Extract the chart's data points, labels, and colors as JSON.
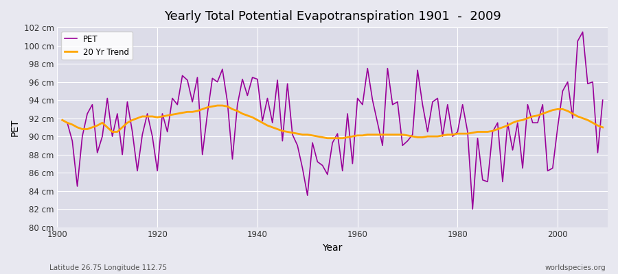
{
  "title": "Yearly Total Potential Evapotranspiration 1901  -  2009",
  "xlabel": "Year",
  "ylabel": "PET",
  "subtitle_left": "Latitude 26.75 Longitude 112.75",
  "subtitle_right": "worldspecies.org",
  "ylim": [
    80,
    102
  ],
  "ytick_step": 2,
  "pet_color": "#990099",
  "trend_color": "#FFA500",
  "bg_color": "#E8E8F0",
  "plot_bg_color": "#DCDCE8",
  "grid_color": "#FFFFFF",
  "years": [
    1901,
    1902,
    1903,
    1904,
    1905,
    1906,
    1907,
    1908,
    1909,
    1910,
    1911,
    1912,
    1913,
    1914,
    1915,
    1916,
    1917,
    1918,
    1919,
    1920,
    1921,
    1922,
    1923,
    1924,
    1925,
    1926,
    1927,
    1928,
    1929,
    1930,
    1931,
    1932,
    1933,
    1934,
    1935,
    1936,
    1937,
    1938,
    1939,
    1940,
    1941,
    1942,
    1943,
    1944,
    1945,
    1946,
    1947,
    1948,
    1949,
    1950,
    1951,
    1952,
    1953,
    1954,
    1955,
    1956,
    1957,
    1958,
    1959,
    1960,
    1961,
    1962,
    1963,
    1964,
    1965,
    1966,
    1967,
    1968,
    1969,
    1970,
    1971,
    1972,
    1973,
    1974,
    1975,
    1976,
    1977,
    1978,
    1979,
    1980,
    1981,
    1982,
    1983,
    1984,
    1985,
    1986,
    1987,
    1988,
    1989,
    1990,
    1991,
    1992,
    1993,
    1994,
    1995,
    1996,
    1997,
    1998,
    1999,
    2000,
    2001,
    2002,
    2003,
    2004,
    2005,
    2006,
    2007,
    2008,
    2009
  ],
  "pet_values": [
    91.8,
    91.5,
    89.5,
    84.5,
    90.0,
    92.5,
    93.5,
    88.2,
    90.0,
    94.2,
    90.0,
    92.5,
    88.0,
    93.8,
    90.5,
    86.2,
    90.2,
    92.5,
    90.0,
    86.2,
    92.5,
    90.5,
    94.2,
    93.5,
    96.7,
    96.2,
    93.8,
    96.5,
    88.0,
    92.5,
    96.4,
    96.0,
    97.4,
    93.8,
    87.5,
    93.5,
    96.3,
    94.5,
    96.5,
    96.3,
    91.7,
    94.2,
    91.5,
    96.2,
    89.5,
    95.8,
    90.2,
    89.0,
    86.5,
    83.5,
    89.3,
    87.2,
    86.8,
    85.8,
    89.3,
    90.3,
    86.2,
    92.5,
    87.0,
    94.2,
    93.5,
    97.5,
    94.0,
    91.5,
    89.0,
    97.5,
    93.5,
    93.8,
    89.0,
    89.5,
    90.2,
    97.3,
    93.5,
    90.5,
    93.8,
    94.2,
    90.0,
    93.5,
    90.0,
    90.5,
    93.5,
    90.5,
    82.0,
    89.8,
    85.2,
    85.0,
    90.5,
    91.5,
    85.0,
    91.5,
    88.5,
    91.5,
    86.5,
    93.5,
    91.5,
    91.5,
    93.5,
    86.2,
    86.5,
    91.0,
    95.0,
    96.0,
    92.0,
    100.5,
    101.5,
    95.8,
    96.0,
    88.2,
    94.0
  ],
  "trend_values": [
    91.8,
    91.5,
    91.3,
    91.0,
    90.8,
    90.8,
    91.0,
    91.2,
    91.5,
    91.0,
    90.5,
    90.5,
    91.0,
    91.5,
    91.8,
    92.0,
    92.2,
    92.2,
    92.2,
    92.1,
    92.2,
    92.3,
    92.4,
    92.5,
    92.6,
    92.7,
    92.7,
    92.8,
    93.0,
    93.2,
    93.3,
    93.4,
    93.4,
    93.3,
    93.0,
    92.8,
    92.5,
    92.3,
    92.1,
    91.8,
    91.5,
    91.2,
    91.0,
    90.8,
    90.6,
    90.5,
    90.4,
    90.3,
    90.2,
    90.2,
    90.1,
    90.0,
    89.9,
    89.8,
    89.8,
    89.8,
    89.8,
    89.9,
    90.0,
    90.1,
    90.1,
    90.2,
    90.2,
    90.2,
    90.2,
    90.2,
    90.2,
    90.2,
    90.2,
    90.1,
    90.0,
    89.9,
    89.9,
    90.0,
    90.0,
    90.0,
    90.1,
    90.2,
    90.2,
    90.3,
    90.3,
    90.3,
    90.4,
    90.5,
    90.5,
    90.5,
    90.6,
    90.8,
    91.0,
    91.2,
    91.5,
    91.7,
    91.8,
    92.0,
    92.2,
    92.3,
    92.5,
    92.7,
    92.9,
    93.0,
    93.0,
    92.8,
    92.5,
    92.2,
    92.0,
    91.8,
    91.5,
    91.2,
    91.0
  ],
  "pet_linewidth": 1.2,
  "trend_linewidth": 2.0
}
